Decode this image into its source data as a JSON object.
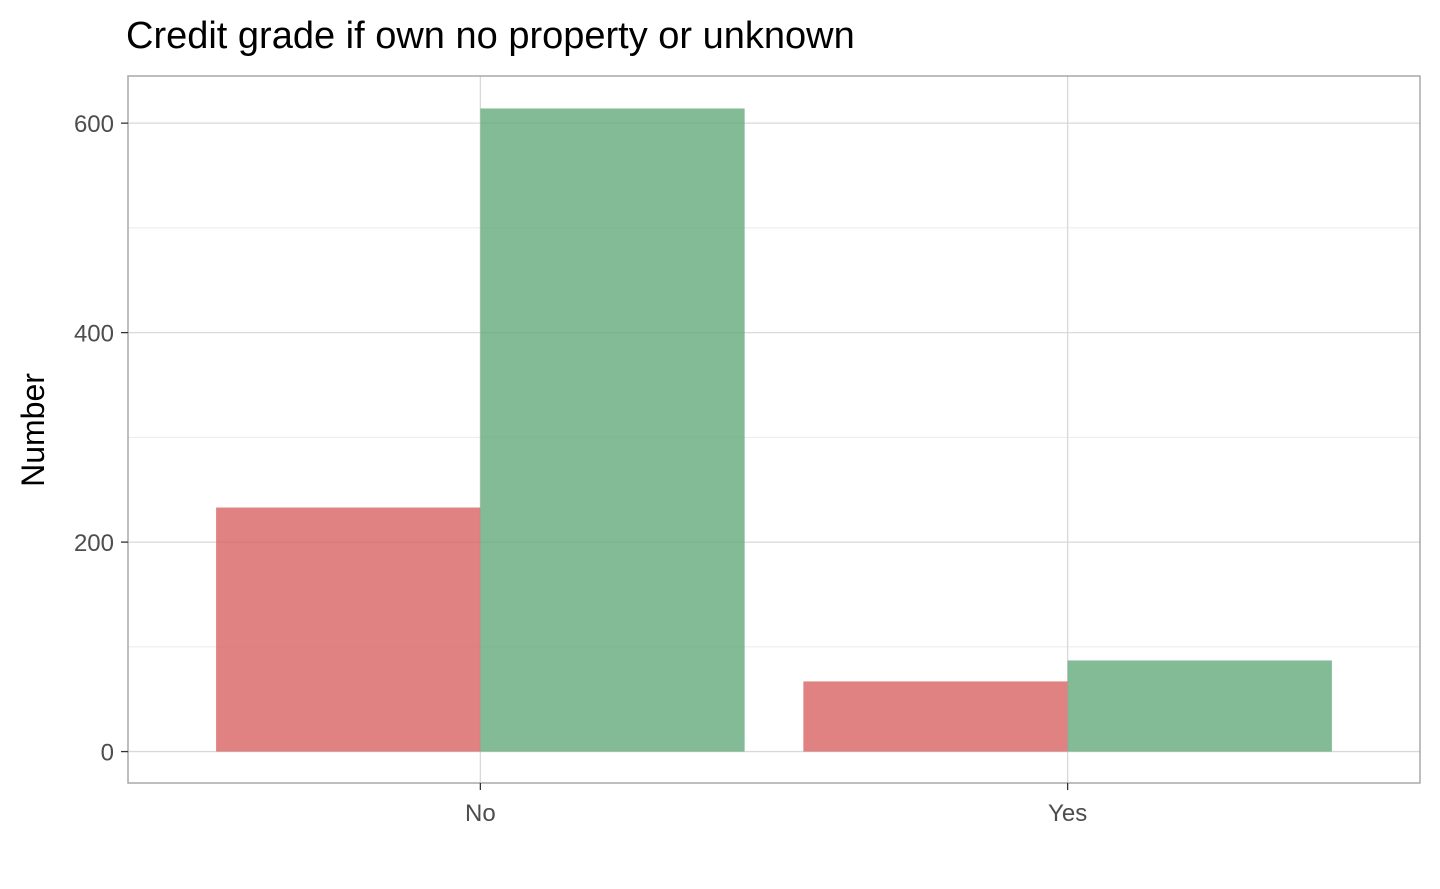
{
  "chart_data": {
    "type": "bar",
    "title": "Credit grade if own no property or unknown",
    "xlabel": "",
    "ylabel": "Number",
    "categories": [
      "No",
      "Yes"
    ],
    "series": [
      {
        "values": [
          233,
          67
        ],
        "color": "#d95f5f"
      },
      {
        "values": [
          614,
          87
        ],
        "color": "#5fa878"
      }
    ],
    "ylim": [
      -30,
      645
    ],
    "yticks": [
      0,
      200,
      400,
      600
    ],
    "ytick_labels": [
      "0",
      "200",
      "400",
      "600"
    ],
    "grid": true,
    "legend": "none"
  }
}
